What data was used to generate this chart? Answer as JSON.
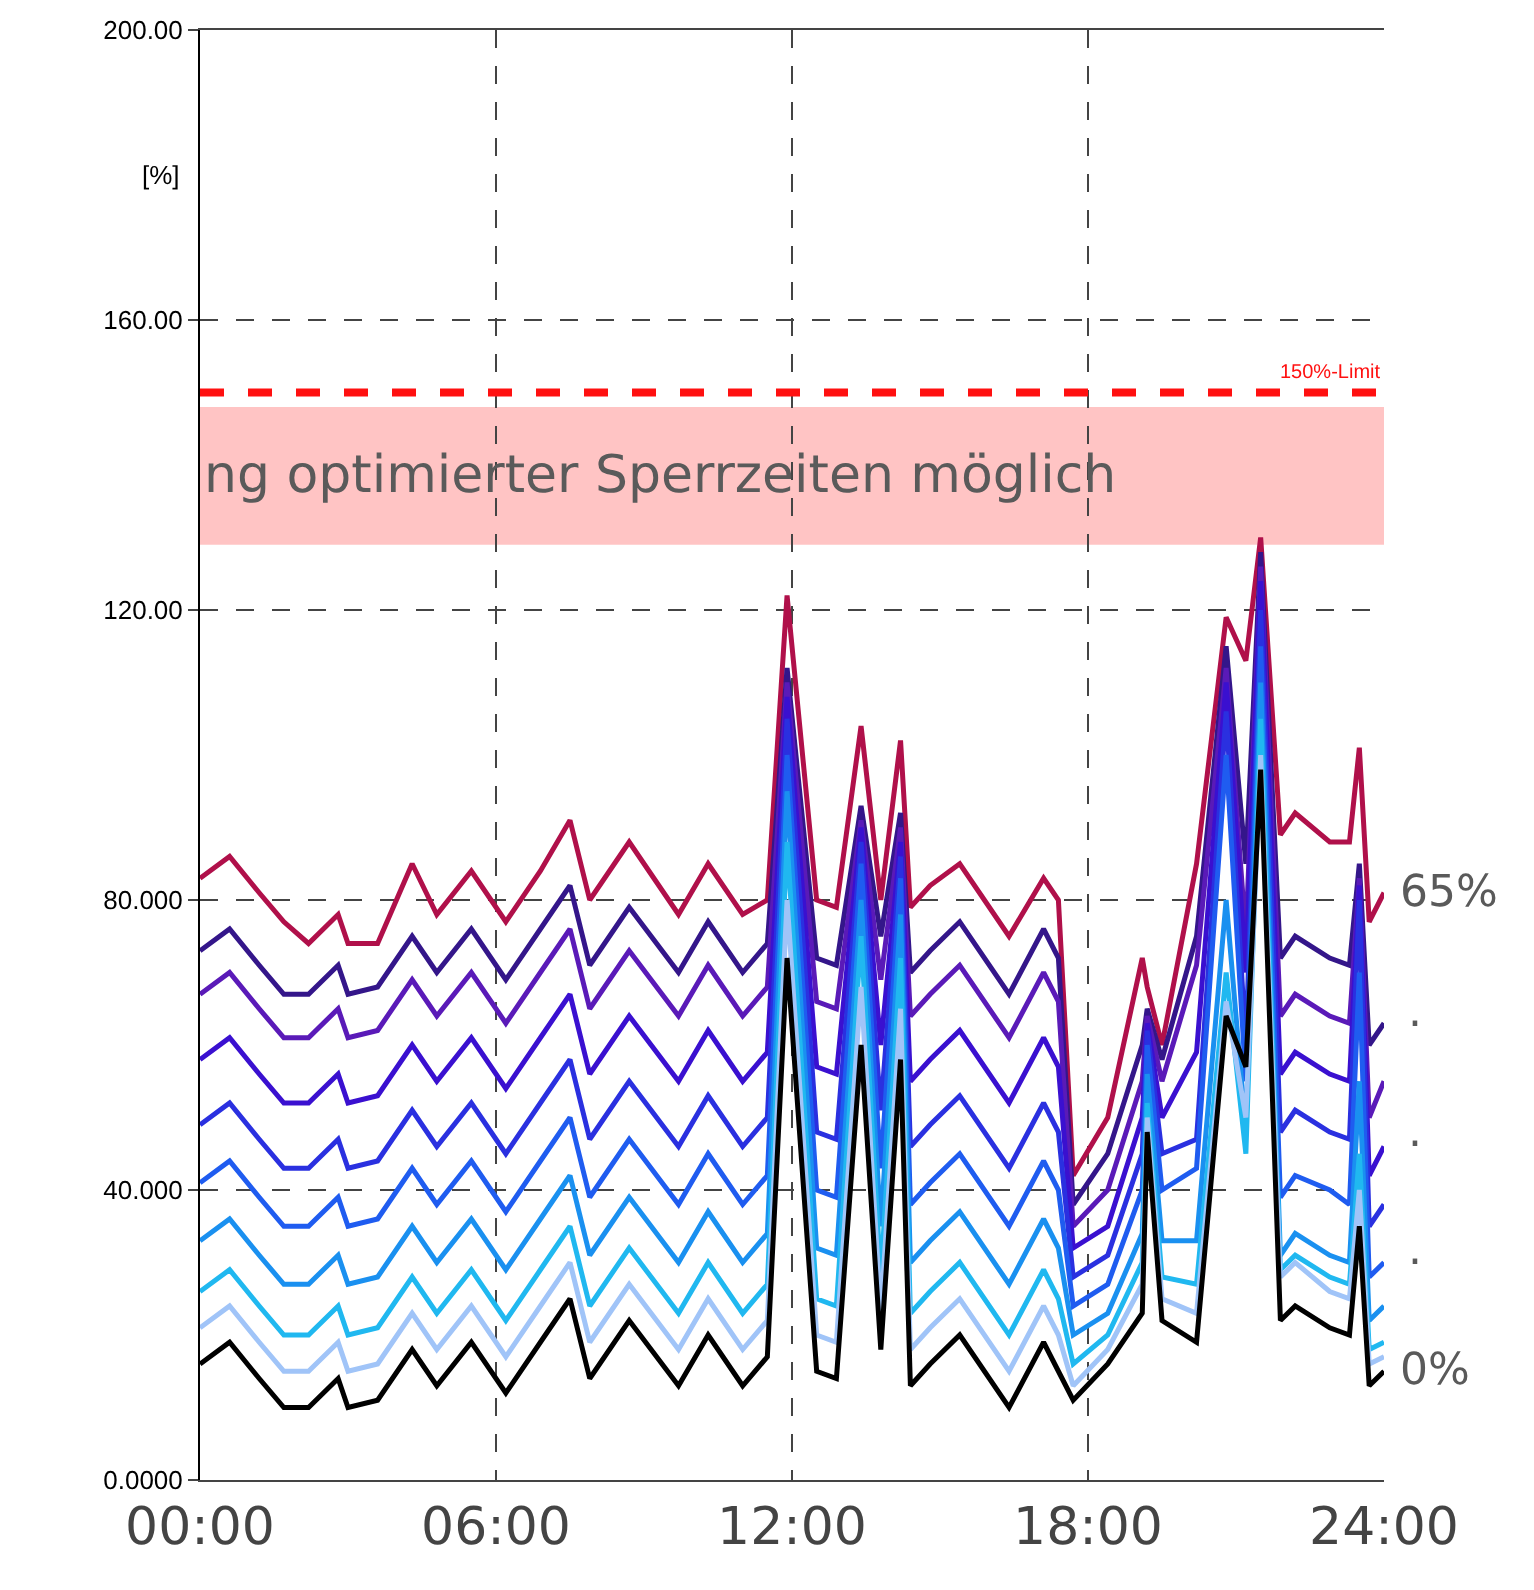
{
  "chart_data": {
    "type": "line",
    "ylabel": "[%]",
    "x": [
      0,
      0.6,
      1.2,
      1.7,
      2.2,
      2.8,
      3.0,
      3.6,
      4.3,
      4.8,
      5.5,
      6.2,
      6.9,
      7.5,
      7.9,
      8.7,
      9.7,
      10.3,
      11.0,
      11.5,
      11.9,
      12.5,
      12.9,
      13.4,
      13.8,
      14.2,
      14.4,
      14.8,
      15.4,
      16.4,
      17.1,
      17.4,
      17.7,
      18.4,
      19.1,
      19.2,
      19.5,
      20.2,
      20.8,
      21.2,
      21.5,
      21.9,
      22.2,
      22.9,
      23.3,
      23.5,
      23.7,
      24.0
    ],
    "xlim": [
      0,
      24
    ],
    "xticks": [
      {
        "value": 0,
        "label": "00:00"
      },
      {
        "value": 6,
        "label": "06:00"
      },
      {
        "value": 12,
        "label": "12:00"
      },
      {
        "value": 18,
        "label": "18:00"
      },
      {
        "value": 24,
        "label": "24:00"
      }
    ],
    "ylim": [
      0,
      200
    ],
    "yticks": [
      {
        "value": 0,
        "label": "0.0000"
      },
      {
        "value": 40,
        "label": "40.000"
      },
      {
        "value": 80,
        "label": "80.000"
      },
      {
        "value": 120,
        "label": "120.00"
      },
      {
        "value": 160,
        "label": "160.00"
      },
      {
        "value": 200,
        "label": "200.00"
      }
    ],
    "grid": true,
    "line_style": "solid",
    "series": [
      {
        "name": "65%",
        "color": "#b0104a",
        "values": [
          83,
          86,
          81,
          77,
          74,
          78,
          74,
          74,
          85,
          78,
          84,
          77,
          84,
          91,
          80,
          88,
          78,
          85,
          78,
          80,
          122,
          80,
          79,
          104,
          80,
          102,
          79,
          82,
          85,
          75,
          83,
          80,
          42,
          50,
          72,
          68,
          60,
          85,
          119,
          113,
          130,
          89,
          92,
          88,
          88,
          101,
          77,
          81
        ]
      },
      {
        "color": "#34168a",
        "values": [
          73,
          76,
          71,
          67,
          67,
          71,
          67,
          68,
          75,
          70,
          76,
          69,
          76,
          82,
          71,
          79,
          70,
          77,
          70,
          74,
          112,
          72,
          71,
          93,
          75,
          92,
          70,
          73,
          77,
          67,
          76,
          72,
          38,
          45,
          60,
          65,
          58,
          75,
          115,
          85,
          128,
          72,
          75,
          72,
          71,
          85,
          60,
          63
        ]
      },
      {
        "color": "#5a1ab8",
        "values": [
          67,
          70,
          65,
          61,
          61,
          65,
          61,
          62,
          69,
          64,
          70,
          63,
          70,
          76,
          65,
          73,
          64,
          71,
          64,
          68,
          110,
          66,
          65,
          91,
          69,
          90,
          64,
          67,
          71,
          61,
          70,
          66,
          35,
          40,
          55,
          64,
          55,
          71,
          112,
          75,
          126,
          64,
          67,
          64,
          63,
          83,
          50,
          55
        ]
      },
      {
        "color": "#3a10d0",
        "values": [
          58,
          61,
          56,
          52,
          52,
          56,
          52,
          53,
          60,
          55,
          61,
          54,
          61,
          67,
          56,
          64,
          55,
          62,
          55,
          59,
          108,
          57,
          56,
          90,
          60,
          88,
          55,
          58,
          62,
          52,
          61,
          57,
          32,
          35,
          50,
          63,
          50,
          59,
          110,
          70,
          124,
          56,
          59,
          56,
          55,
          82,
          42,
          46
        ]
      },
      {
        "color": "#2a30e0",
        "values": [
          49,
          52,
          47,
          43,
          43,
          47,
          43,
          44,
          51,
          46,
          52,
          45,
          52,
          58,
          47,
          55,
          46,
          53,
          46,
          50,
          105,
          48,
          47,
          88,
          51,
          86,
          46,
          49,
          53,
          43,
          52,
          48,
          28,
          31,
          45,
          62,
          45,
          47,
          106,
          60,
          120,
          48,
          51,
          48,
          47,
          80,
          35,
          38
        ]
      },
      {
        "color": "#1f5cf0",
        "values": [
          41,
          44,
          39,
          35,
          35,
          39,
          35,
          36,
          43,
          38,
          44,
          37,
          44,
          50,
          39,
          47,
          38,
          45,
          38,
          42,
          100,
          40,
          39,
          85,
          43,
          83,
          38,
          41,
          45,
          35,
          44,
          40,
          24,
          27,
          40,
          60,
          40,
          43,
          100,
          55,
          115,
          39,
          42,
          40,
          38,
          70,
          28,
          30
        ]
      },
      {
        "color": "#1a90f0",
        "values": [
          33,
          36,
          31,
          27,
          27,
          31,
          27,
          28,
          35,
          30,
          36,
          29,
          36,
          42,
          31,
          39,
          30,
          37,
          30,
          34,
          95,
          32,
          31,
          80,
          35,
          78,
          30,
          33,
          37,
          27,
          36,
          32,
          20,
          23,
          34,
          56,
          33,
          33,
          80,
          48,
          110,
          31,
          34,
          31,
          30,
          55,
          22,
          24
        ]
      },
      {
        "color": "#20b8f0",
        "values": [
          26,
          29,
          24,
          20,
          20,
          24,
          20,
          21,
          28,
          23,
          29,
          22,
          29,
          35,
          24,
          32,
          23,
          30,
          23,
          27,
          88,
          25,
          24,
          75,
          28,
          72,
          23,
          26,
          30,
          20,
          29,
          25,
          16,
          20,
          30,
          52,
          28,
          27,
          70,
          45,
          105,
          29,
          31,
          28,
          27,
          45,
          18,
          19
        ]
      },
      {
        "color": "#a0c4f8",
        "values": [
          21,
          24,
          19,
          15,
          15,
          19,
          15,
          16,
          23,
          18,
          24,
          17,
          24,
          30,
          19,
          27,
          18,
          25,
          18,
          22,
          80,
          20,
          19,
          68,
          23,
          65,
          18,
          21,
          25,
          15,
          24,
          20,
          13,
          18,
          27,
          50,
          25,
          23,
          66,
          50,
          100,
          28,
          30,
          26,
          25,
          40,
          16,
          17
        ]
      },
      {
        "name": "0%",
        "color": "#000000",
        "values": [
          16,
          19,
          14,
          10,
          10,
          14,
          10,
          11,
          18,
          13,
          19,
          12,
          19,
          25,
          14,
          22,
          13,
          20,
          13,
          17,
          72,
          15,
          14,
          60,
          18,
          58,
          13,
          16,
          20,
          10,
          19,
          15,
          11,
          16,
          23,
          48,
          22,
          19,
          64,
          57,
          98,
          22,
          24,
          21,
          20,
          35,
          13,
          15
        ]
      }
    ],
    "ref_lines": [
      {
        "axis": "y",
        "value": 150,
        "label": "150%-Limit",
        "color": "#ff1010",
        "line_style": "dashed"
      }
    ],
    "bands": [
      {
        "axis": "y",
        "from": 129,
        "to": 148,
        "label": "ng optimierter Sperrzeiten möglich",
        "color": "#ffc4c4"
      }
    ],
    "annotations": [
      ".",
      ".",
      "."
    ]
  }
}
